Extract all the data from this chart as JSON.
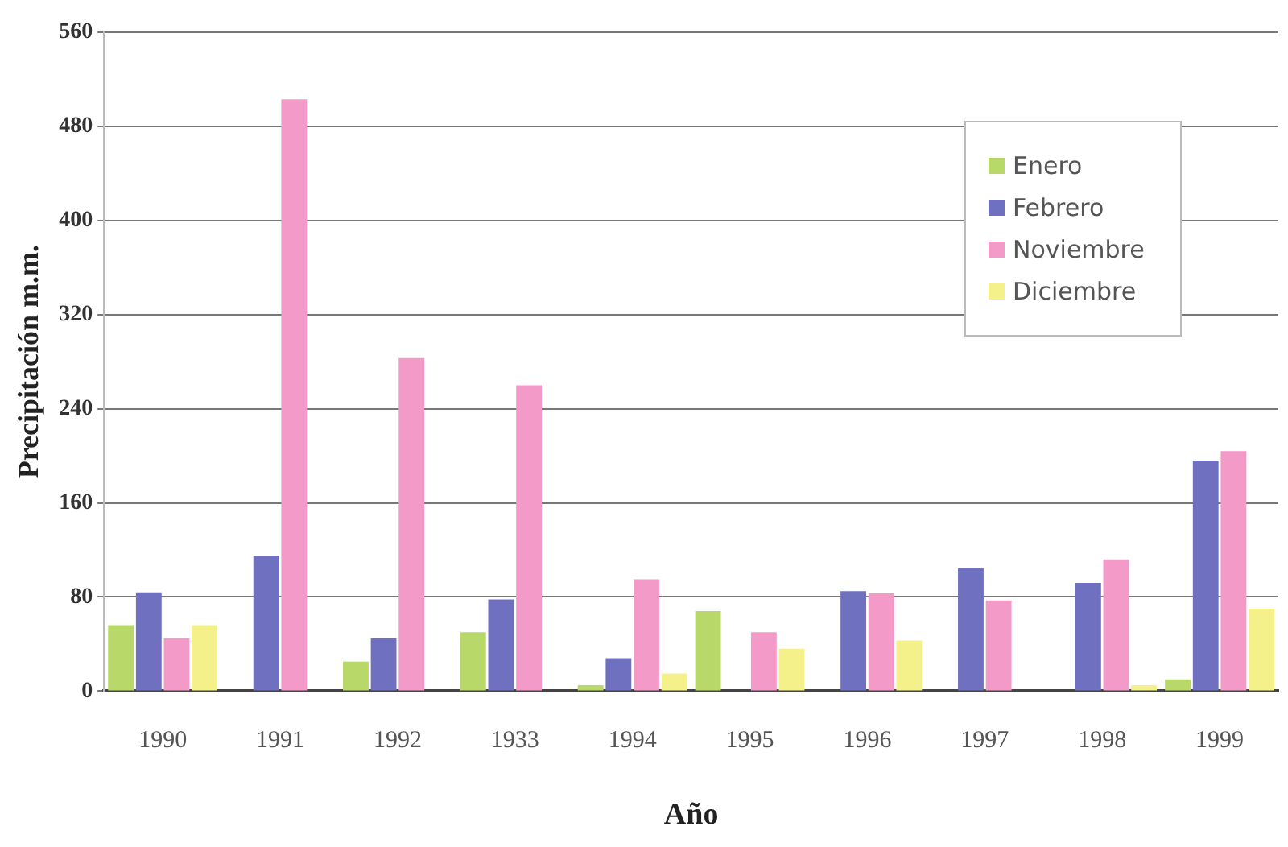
{
  "chart_data": {
    "type": "bar",
    "xlabel": "Año",
    "ylabel": "Precipitación m.m.",
    "categories": [
      "1990",
      "1991",
      "1992",
      "1933",
      "1994",
      "1995",
      "1996",
      "1997",
      "1998",
      "1999"
    ],
    "series": [
      {
        "name": "Enero",
        "color": "#b8d86a",
        "values": [
          56,
          null,
          25,
          50,
          5,
          68,
          null,
          null,
          null,
          10
        ]
      },
      {
        "name": "Febrero",
        "color": "#7070c0",
        "values": [
          84,
          115,
          45,
          78,
          28,
          null,
          85,
          105,
          92,
          196
        ]
      },
      {
        "name": "Noviembre",
        "color": "#f49ac8",
        "values": [
          45,
          503,
          283,
          260,
          95,
          50,
          83,
          77,
          112,
          204
        ]
      },
      {
        "name": "Diciembre",
        "color": "#f4f08a",
        "values": [
          56,
          null,
          null,
          null,
          15,
          36,
          43,
          null,
          5,
          70
        ]
      }
    ],
    "ylim": [
      0,
      560
    ],
    "yticks": [
      0,
      80,
      160,
      240,
      320,
      400,
      480,
      560
    ],
    "grid": "y",
    "legend": "top right"
  }
}
